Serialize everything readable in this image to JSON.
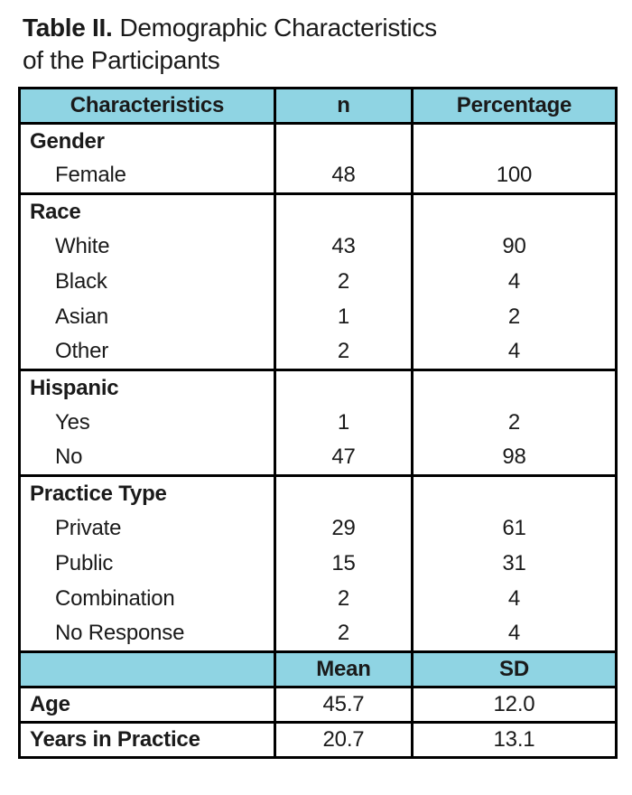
{
  "title": {
    "prefix": "Table II.",
    "line1_rest": "Demographic Characteristics",
    "line2": "of the Participants"
  },
  "table": {
    "columns": [
      "Characteristics",
      "n",
      "Percentage"
    ],
    "groups": [
      {
        "header": "Gender",
        "rows": [
          {
            "label": "Female",
            "n": "48",
            "percentage": "100"
          }
        ]
      },
      {
        "header": "Race",
        "rows": [
          {
            "label": "White",
            "n": "43",
            "percentage": "90"
          },
          {
            "label": "Black",
            "n": "2",
            "percentage": "4"
          },
          {
            "label": "Asian",
            "n": "1",
            "percentage": "2"
          },
          {
            "label": "Other",
            "n": "2",
            "percentage": "4"
          }
        ]
      },
      {
        "header": "Hispanic",
        "rows": [
          {
            "label": "Yes",
            "n": "1",
            "percentage": "2"
          },
          {
            "label": "No",
            "n": "47",
            "percentage": "98"
          }
        ]
      },
      {
        "header": "Practice Type",
        "rows": [
          {
            "label": "Private",
            "n": "29",
            "percentage": "61"
          },
          {
            "label": "Public",
            "n": "15",
            "percentage": "31"
          },
          {
            "label": "Combination",
            "n": "2",
            "percentage": "4"
          },
          {
            "label": "No Response",
            "n": "2",
            "percentage": "4"
          }
        ]
      }
    ],
    "stats_header": {
      "empty": "",
      "mean": "Mean",
      "sd": "SD"
    },
    "stats_rows": [
      {
        "label": "Age",
        "mean": "45.7",
        "sd": "12.0"
      },
      {
        "label": "Years in Practice",
        "mean": "20.7",
        "sd": "13.1"
      }
    ],
    "colors": {
      "header_bg": "#8FD4E3",
      "border": "#000000",
      "text": "#1A1A1A"
    }
  }
}
